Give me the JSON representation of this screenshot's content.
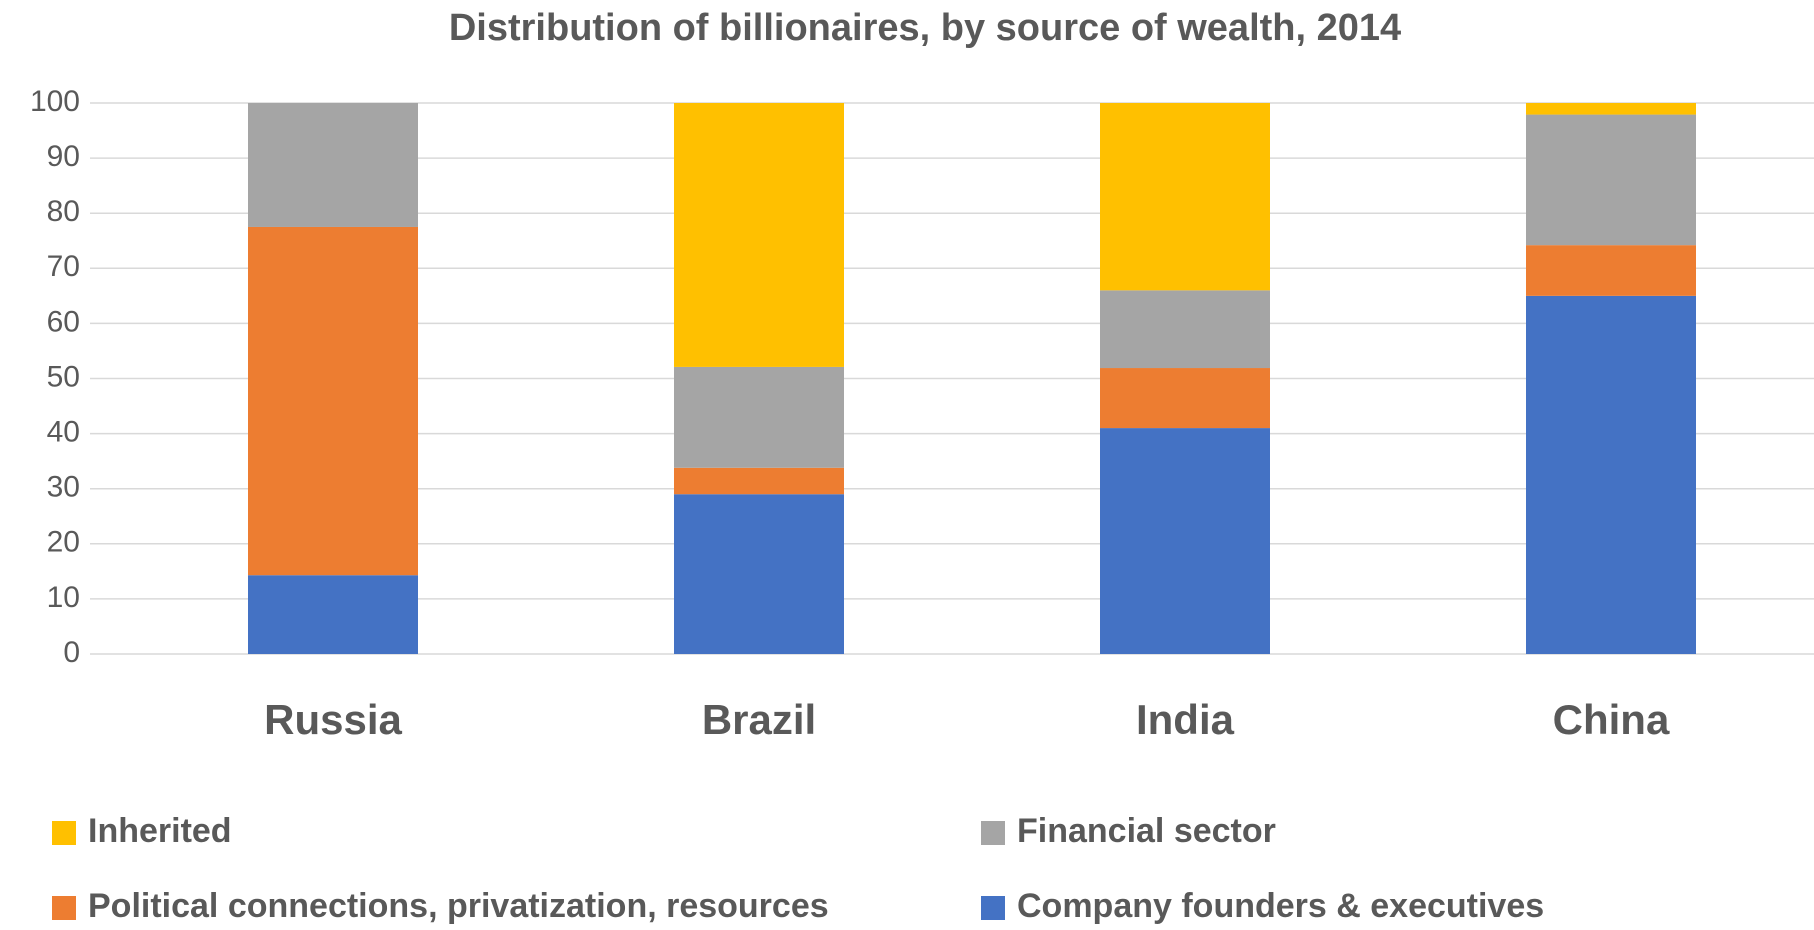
{
  "chart_data": {
    "type": "stacked_bar",
    "title": "Distribution of billionaires, by source of wealth, 2014",
    "categories": [
      "Russia",
      "Brazil",
      "India",
      "China"
    ],
    "series": [
      {
        "name": "Inherited",
        "color": "#ffc000",
        "values": [
          0,
          47.9,
          34,
          2.1
        ]
      },
      {
        "name": "Financial sector",
        "color": "#a5a5a5",
        "values": [
          22.5,
          18.3,
          14.1,
          23.7
        ]
      },
      {
        "name": "Political connections, privatization, resources",
        "color": "#ed7d31",
        "values": [
          63.2,
          4.8,
          10.9,
          9.2
        ]
      },
      {
        "name": "Company founders & executives",
        "color": "#4472c4",
        "values": [
          14.3,
          29,
          41,
          65
        ]
      }
    ],
    "ylim": [
      0,
      100
    ],
    "yticks": [
      0,
      10,
      20,
      30,
      40,
      50,
      60,
      70,
      80,
      90,
      100
    ],
    "grid": true,
    "legend": "bottom"
  }
}
